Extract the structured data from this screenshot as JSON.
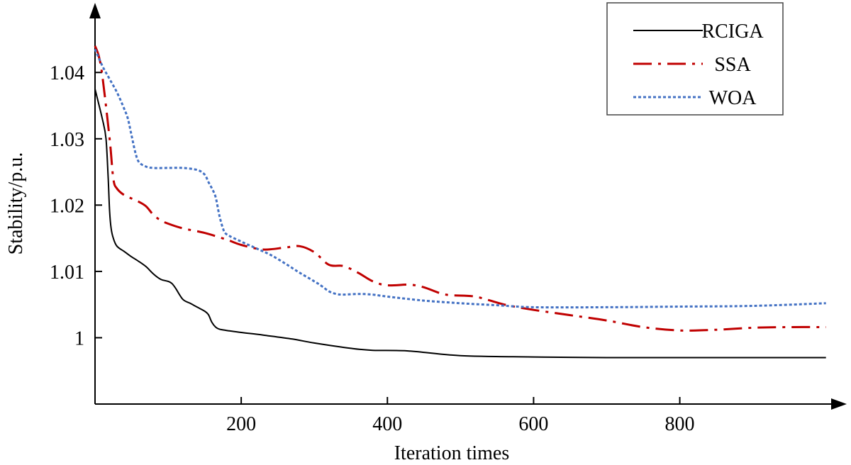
{
  "chart_data": {
    "type": "line",
    "title": "",
    "xlabel": "Iteration times",
    "ylabel": "Stability/p.u.",
    "xlim": [
      0,
      1010
    ],
    "ylim": [
      0.99,
      1.0505
    ],
    "xticks": [
      200,
      400,
      600,
      800
    ],
    "xtick_labels": [
      "200",
      "400",
      "600",
      "800"
    ],
    "yticks": [
      1.0,
      1.01,
      1.02,
      1.03,
      1.04
    ],
    "ytick_labels": [
      "1",
      "1.01",
      "1.02",
      "1.03",
      "1.04"
    ],
    "grid": false,
    "legend": {
      "position": "top-right"
    },
    "series": [
      {
        "name": "RCIGA",
        "color": "#000000",
        "dash": "solid",
        "x": [
          0,
          10,
          15,
          18,
          20,
          22,
          25,
          30,
          40,
          50,
          60,
          70,
          80,
          90,
          100,
          105,
          110,
          120,
          130,
          140,
          150,
          155,
          160,
          165,
          170,
          180,
          200,
          230,
          270,
          300,
          350,
          380,
          430,
          500,
          600,
          700,
          800,
          900,
          1000
        ],
        "y": [
          1.0375,
          1.033,
          1.03,
          1.024,
          1.019,
          1.0165,
          1.015,
          1.0138,
          1.013,
          1.0122,
          1.0115,
          1.0107,
          1.0096,
          1.0088,
          1.0085,
          1.0082,
          1.0075,
          1.0058,
          1.0052,
          1.0046,
          1.004,
          1.0035,
          1.0023,
          1.0016,
          1.0013,
          1.0011,
          1.0008,
          1.0004,
          0.9998,
          0.9992,
          0.9984,
          0.9981,
          0.998,
          0.9973,
          0.9971,
          0.997,
          0.997,
          0.997,
          0.997
        ]
      },
      {
        "name": "SSA",
        "color": "#c00000",
        "dash": "dashdot",
        "x": [
          0,
          5,
          10,
          20,
          25,
          30,
          40,
          50,
          60,
          70,
          80,
          90,
          100,
          120,
          150,
          180,
          200,
          230,
          260,
          280,
          300,
          320,
          340,
          360,
          380,
          400,
          430,
          450,
          480,
          520,
          560,
          600,
          650,
          700,
          750,
          800,
          850,
          900,
          950,
          1000
        ],
        "y": [
          1.044,
          1.0425,
          1.0395,
          1.03,
          1.024,
          1.0225,
          1.0215,
          1.021,
          1.0205,
          1.0198,
          1.0185,
          1.0177,
          1.0172,
          1.0165,
          1.0158,
          1.0148,
          1.014,
          1.0133,
          1.0136,
          1.0138,
          1.0129,
          1.011,
          1.0108,
          1.0098,
          1.0085,
          1.0079,
          1.008,
          1.0076,
          1.0065,
          1.0062,
          1.005,
          1.0042,
          1.0034,
          1.0026,
          1.0016,
          1.0011,
          1.0012,
          1.0015,
          1.0016,
          1.0016
        ]
      },
      {
        "name": "WOA",
        "color": "#4472c4",
        "dash": "dotted",
        "x": [
          0,
          10,
          20,
          30,
          40,
          45,
          50,
          55,
          60,
          70,
          80,
          100,
          120,
          140,
          150,
          155,
          160,
          165,
          170,
          175,
          180,
          200,
          220,
          240,
          260,
          280,
          300,
          310,
          320,
          330,
          340,
          360,
          380,
          400,
          450,
          500,
          550,
          600,
          700,
          800,
          900,
          1000
        ],
        "y": [
          1.0435,
          1.041,
          1.039,
          1.037,
          1.0345,
          1.033,
          1.0305,
          1.028,
          1.0265,
          1.0258,
          1.0256,
          1.0256,
          1.0256,
          1.0253,
          1.0246,
          1.0235,
          1.0225,
          1.0212,
          1.0185,
          1.0165,
          1.0156,
          1.0145,
          1.0135,
          1.0125,
          1.0112,
          1.0098,
          1.0085,
          1.0078,
          1.007,
          1.0066,
          1.0065,
          1.0066,
          1.0065,
          1.0062,
          1.0056,
          1.0052,
          1.0049,
          1.0046,
          1.0046,
          1.0047,
          1.0048,
          1.0052
        ]
      }
    ]
  }
}
